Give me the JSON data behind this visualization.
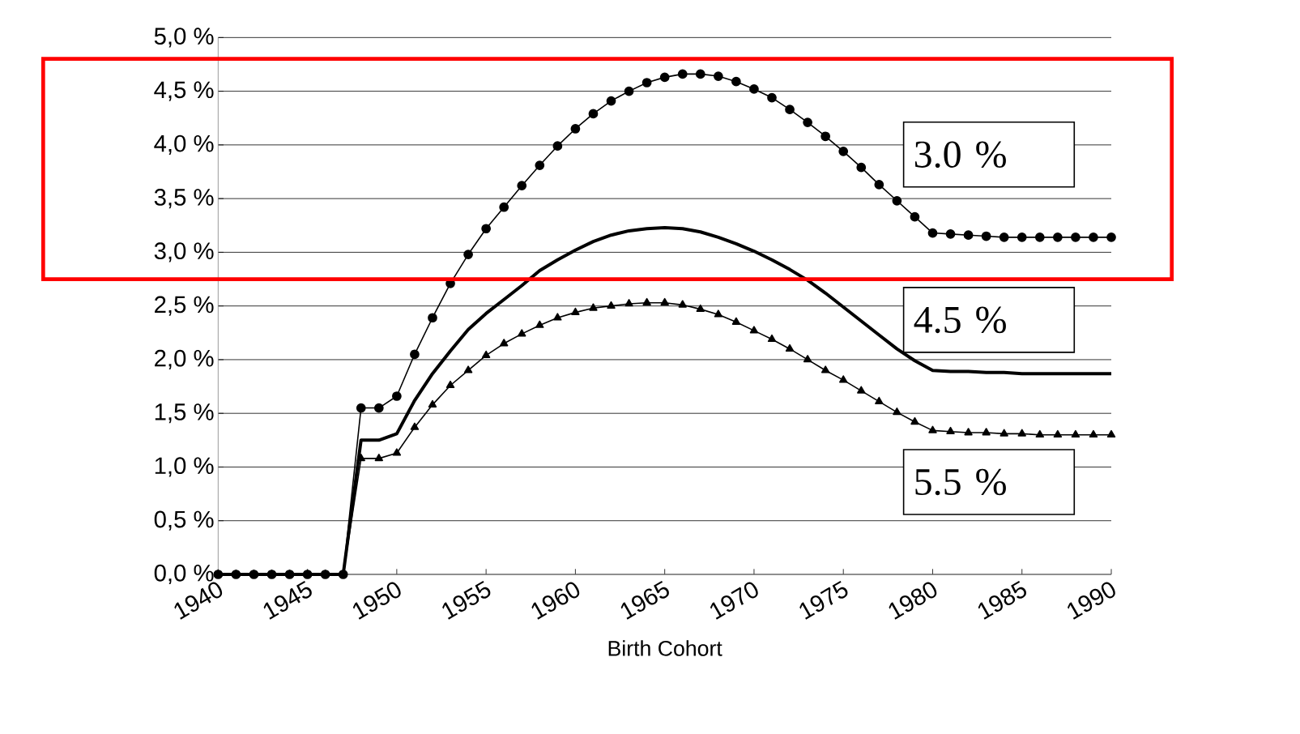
{
  "chart_data": {
    "type": "line",
    "xlabel": "Birth Cohort",
    "x": [
      1940,
      1941,
      1942,
      1943,
      1944,
      1945,
      1946,
      1947,
      1948,
      1949,
      1950,
      1951,
      1952,
      1953,
      1954,
      1955,
      1956,
      1957,
      1958,
      1959,
      1960,
      1961,
      1962,
      1963,
      1964,
      1965,
      1966,
      1967,
      1968,
      1969,
      1970,
      1971,
      1972,
      1973,
      1974,
      1975,
      1976,
      1977,
      1978,
      1979,
      1980,
      1981,
      1982,
      1983,
      1984,
      1985,
      1986,
      1987,
      1988,
      1989,
      1990
    ],
    "series": [
      {
        "name": "3.0 %",
        "color": "#000000",
        "marker": "circle",
        "values": [
          0,
          0,
          0,
          0,
          0,
          0,
          0,
          0,
          1.55,
          1.55,
          1.66,
          2.05,
          2.39,
          2.71,
          2.98,
          3.22,
          3.42,
          3.62,
          3.81,
          3.99,
          4.15,
          4.29,
          4.41,
          4.5,
          4.58,
          4.63,
          4.66,
          4.66,
          4.64,
          4.59,
          4.52,
          4.44,
          4.33,
          4.21,
          4.08,
          3.94,
          3.79,
          3.63,
          3.48,
          3.33,
          3.18,
          3.17,
          3.16,
          3.15,
          3.14,
          3.14,
          3.14,
          3.14,
          3.14,
          3.14,
          3.14
        ]
      },
      {
        "name": "4.5 %",
        "color": "#000000",
        "marker": "none",
        "values": [
          0,
          0,
          0,
          0,
          0,
          0,
          0,
          0,
          1.25,
          1.25,
          1.31,
          1.62,
          1.87,
          2.08,
          2.28,
          2.43,
          2.56,
          2.69,
          2.83,
          2.93,
          3.02,
          3.1,
          3.16,
          3.2,
          3.22,
          3.23,
          3.22,
          3.19,
          3.14,
          3.08,
          3.01,
          2.93,
          2.84,
          2.74,
          2.62,
          2.49,
          2.36,
          2.23,
          2.1,
          1.99,
          1.9,
          1.89,
          1.89,
          1.88,
          1.88,
          1.87,
          1.87,
          1.87,
          1.87,
          1.87,
          1.87
        ]
      },
      {
        "name": "5.5 %",
        "color": "#000000",
        "marker": "triangle",
        "values": [
          0,
          0,
          0,
          0,
          0,
          0,
          0,
          0,
          1.08,
          1.08,
          1.13,
          1.37,
          1.58,
          1.76,
          1.9,
          2.04,
          2.15,
          2.24,
          2.32,
          2.39,
          2.44,
          2.48,
          2.5,
          2.52,
          2.53,
          2.53,
          2.51,
          2.47,
          2.42,
          2.35,
          2.27,
          2.19,
          2.1,
          2.0,
          1.9,
          1.81,
          1.71,
          1.61,
          1.51,
          1.42,
          1.34,
          1.33,
          1.32,
          1.32,
          1.31,
          1.31,
          1.3,
          1.3,
          1.3,
          1.3,
          1.3
        ]
      }
    ],
    "xlim": [
      1940,
      1990
    ],
    "xticks": [
      1940,
      1945,
      1950,
      1955,
      1960,
      1965,
      1970,
      1975,
      1980,
      1985,
      1990
    ],
    "ylim": [
      0,
      5
    ],
    "yticks": [
      {
        "value": 0,
        "label": "0,0 %"
      },
      {
        "value": 0.5,
        "label": "0,5 %"
      },
      {
        "value": 1,
        "label": "1,0 %"
      },
      {
        "value": 1.5,
        "label": "1,5 %"
      },
      {
        "value": 2,
        "label": "2,0 %"
      },
      {
        "value": 2.5,
        "label": "2,5 %"
      },
      {
        "value": 3,
        "label": "3,0 %"
      },
      {
        "value": 3.5,
        "label": "3,5 %"
      },
      {
        "value": 4,
        "label": "4,0 %"
      },
      {
        "value": 4.5,
        "label": "4,5 %"
      },
      {
        "value": 5,
        "label": "5,0 %"
      }
    ],
    "grid": "y",
    "legend": false,
    "line_style": "solid"
  }
}
